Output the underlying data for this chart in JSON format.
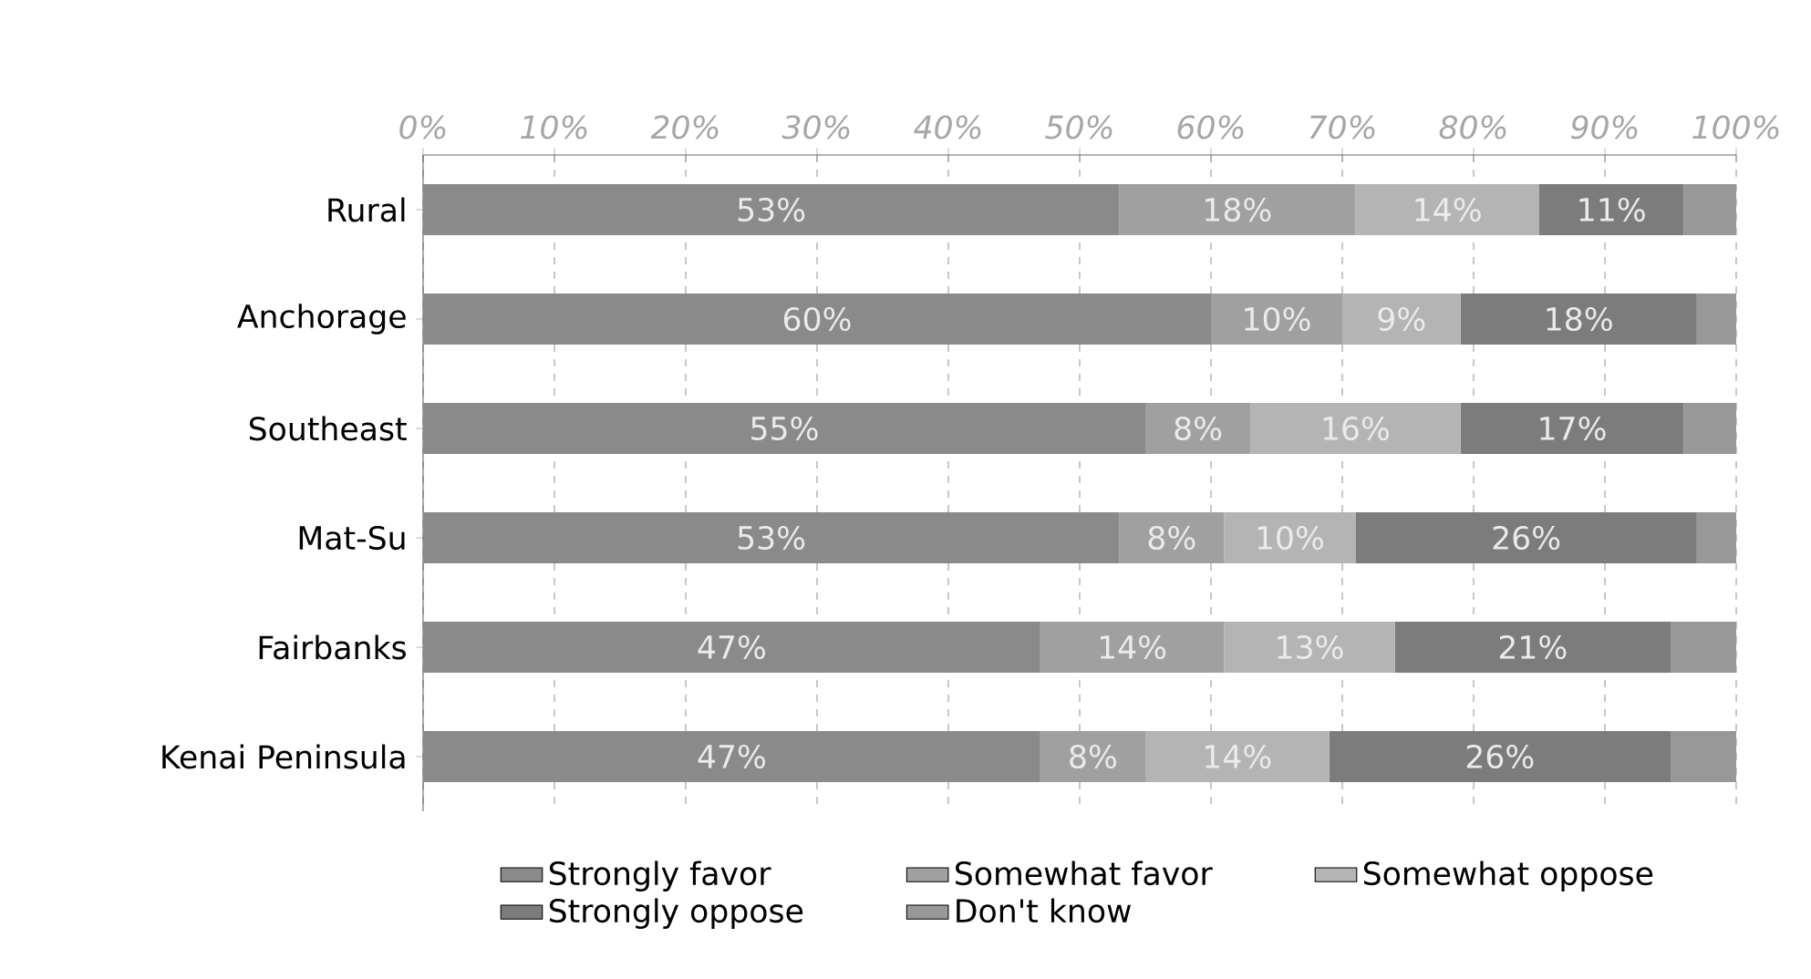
{
  "chart_data": {
    "type": "bar",
    "orientation": "horizontal",
    "stacked": true,
    "categories": [
      "Rural",
      "Anchorage",
      "Southeast",
      "Mat-Su",
      "Fairbanks",
      "Kenai Peninsula"
    ],
    "series": [
      {
        "name": "Strongly favor",
        "color": "#8a8a8a",
        "values": [
          53,
          60,
          55,
          53,
          47,
          47
        ],
        "value_labels": [
          "53%",
          "60%",
          "55%",
          "53%",
          "47%",
          "47%"
        ]
      },
      {
        "name": "Somewhat favor",
        "color": "#a0a0a0",
        "values": [
          18,
          10,
          8,
          8,
          14,
          8
        ],
        "value_labels": [
          "18%",
          "10%",
          "8%",
          "8%",
          "14%",
          "8%"
        ]
      },
      {
        "name": "Somewhat oppose",
        "color": "#b4b4b4",
        "values": [
          14,
          9,
          16,
          10,
          13,
          14
        ],
        "value_labels": [
          "14%",
          "9%",
          "16%",
          "10%",
          "13%",
          "14%"
        ]
      },
      {
        "name": "Strongly oppose",
        "color": "#7c7c7c",
        "values": [
          11,
          18,
          17,
          26,
          21,
          26
        ],
        "value_labels": [
          "11%",
          "18%",
          "17%",
          "26%",
          "21%",
          "26%"
        ]
      },
      {
        "name": "Don't know",
        "color": "#989898",
        "values": [
          4,
          3,
          4,
          3,
          5,
          5
        ]
      }
    ],
    "xlim": [
      0,
      100
    ],
    "xticks": [
      {
        "value": 0,
        "label": "0%"
      },
      {
        "value": 10,
        "label": "10%"
      },
      {
        "value": 20,
        "label": "20%"
      },
      {
        "value": 30,
        "label": "30%"
      },
      {
        "value": 40,
        "label": "40%"
      },
      {
        "value": 50,
        "label": "50%"
      },
      {
        "value": 60,
        "label": "60%"
      },
      {
        "value": 70,
        "label": "70%"
      },
      {
        "value": 80,
        "label": "80%"
      },
      {
        "value": 90,
        "label": "90%"
      },
      {
        "value": 100,
        "label": "100%"
      }
    ],
    "grid": "x",
    "legend": "bottom"
  }
}
